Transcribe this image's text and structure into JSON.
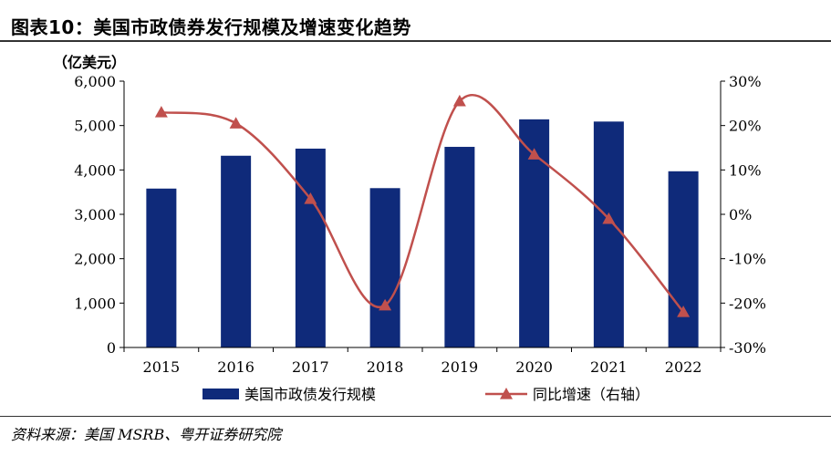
{
  "title": "图表10：美国市政债券发行规模及增速变化趋势",
  "source": "资料来源：美国 MSRB、粤开证券研究院",
  "chart_data": {
    "type": "bar",
    "categories": [
      "2015",
      "2016",
      "2017",
      "2018",
      "2019",
      "2020",
      "2021",
      "2022"
    ],
    "series": [
      {
        "name": "美国市政债发行规模",
        "type": "bar",
        "axis": "left",
        "values": [
          3580,
          4320,
          4480,
          3590,
          4520,
          5140,
          5090,
          3970
        ],
        "color": "#0f2a7a"
      },
      {
        "name": "同比增速（右轴）",
        "type": "line",
        "axis": "right",
        "values": [
          23.0,
          20.5,
          3.5,
          -20.5,
          25.5,
          13.5,
          -1.0,
          -22.0
        ],
        "color": "#c0504d"
      }
    ],
    "ylabel": "（亿美元）",
    "ylim": [
      0,
      6000
    ],
    "yticks": [
      "0",
      "1,000",
      "2,000",
      "3,000",
      "4,000",
      "5,000",
      "6,000"
    ],
    "y2lim": [
      -30,
      30
    ],
    "y2ticks": [
      "-30%",
      "-20%",
      "-10%",
      "0%",
      "10%",
      "20%",
      "30%"
    ],
    "legend": "bottom",
    "grid": false
  }
}
